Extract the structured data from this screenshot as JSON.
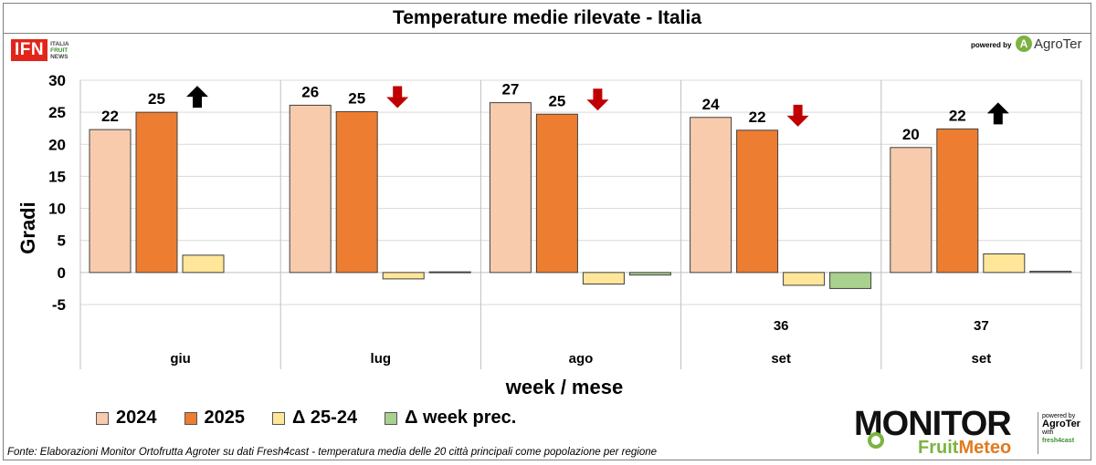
{
  "title": "Temperature medie rilevate - Italia",
  "logos": {
    "ifn_main": "IFN",
    "ifn_side": [
      "ITALIA",
      "FRUIT",
      "NEWS"
    ],
    "powered_by": "powered by",
    "agroter": "AgroTer",
    "monitor": "MONITOR",
    "fruitmeteo_a": "Fruit",
    "fruitmeteo_b": "Meteo",
    "mon_powered": "powered by",
    "mon_agroter": "AgroTer",
    "mon_with": "with",
    "mon_fresh": "fresh4cast"
  },
  "source": "Fonte: Elaborazioni Monitor Ortofrutta Agroter su dati Fresh4cast - temperatura media delle 20 città principali come popolazione per regione",
  "colors": {
    "c2024": "#f8cbad",
    "c2025": "#ed7d31",
    "cdelta": "#ffe699",
    "cweek": "#a9d18e",
    "arrow_up": "#000000",
    "arrow_down": "#c00000"
  },
  "chart_data": {
    "type": "bar",
    "ylabel": "Gradi",
    "xlabel": "week / mese",
    "ylim": [
      -5,
      30
    ],
    "yticks": [
      -5,
      0,
      5,
      10,
      15,
      20,
      25,
      30
    ],
    "grid": true,
    "legend_position": "bottom-left",
    "groups": [
      {
        "week": "",
        "month": "giu",
        "y2024": 22.3,
        "y2025": 25.0,
        "delta": 2.7,
        "week_prev": null,
        "label2024": "22",
        "label2025": "25",
        "trend": "up"
      },
      {
        "week": "",
        "month": "lug",
        "y2024": 26.1,
        "y2025": 25.1,
        "delta": -1.0,
        "week_prev": 0.1,
        "label2024": "26",
        "label2025": "25",
        "trend": "down"
      },
      {
        "week": "",
        "month": "ago",
        "y2024": 26.5,
        "y2025": 24.7,
        "delta": -1.8,
        "week_prev": -0.4,
        "label2024": "27",
        "label2025": "25",
        "trend": "down"
      },
      {
        "week": "36",
        "month": "set",
        "y2024": 24.2,
        "y2025": 22.2,
        "delta": -2.0,
        "week_prev": -2.5,
        "label2024": "24",
        "label2025": "22",
        "trend": "down"
      },
      {
        "week": "37",
        "month": "set",
        "y2024": 19.5,
        "y2025": 22.4,
        "delta": 2.9,
        "week_prev": 0.2,
        "label2024": "20",
        "label2025": "22",
        "trend": "up"
      }
    ],
    "series": [
      {
        "name": "2024",
        "key": "y2024"
      },
      {
        "name": "2025",
        "key": "y2025"
      },
      {
        "name": "Δ 25-24",
        "key": "delta"
      },
      {
        "name": "Δ week prec.",
        "key": "week_prev"
      }
    ]
  }
}
